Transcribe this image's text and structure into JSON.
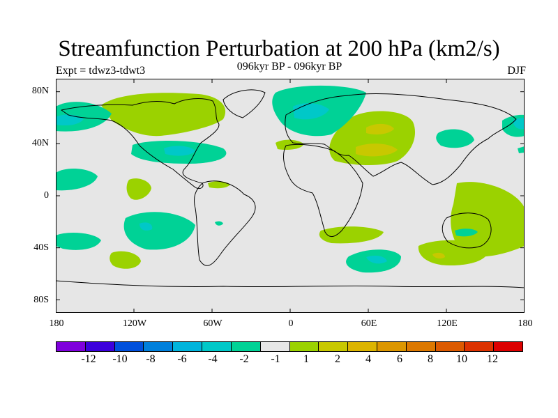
{
  "title": "Streamfunction Perturbation at 200 hPa (km2/s)",
  "subtitle": "096kyr BP - 096kyr BP",
  "left_label": "Expt = tdwz3-tdwt3",
  "right_label": "DJF",
  "map": {
    "projection": "cylindrical-equidistant",
    "background_color": "#e6e6e6",
    "coastline_color": "#000000",
    "lat_ticks": [
      "80N",
      "40N",
      "0",
      "40S",
      "80S"
    ],
    "lat_values": [
      80,
      40,
      0,
      -40,
      -80
    ],
    "lon_ticks": [
      "180",
      "120W",
      "60W",
      "0",
      "60E",
      "120E",
      "180"
    ],
    "lon_values": [
      -180,
      -120,
      -60,
      0,
      60,
      120,
      180
    ]
  },
  "colorbar": {
    "colors": [
      "#7f00dc",
      "#3c00dc",
      "#0050dc",
      "#0080dc",
      "#00b4dc",
      "#00c8c8",
      "#00d296",
      "#e6e6e6",
      "#9bd200",
      "#c8c800",
      "#dcb400",
      "#dc9600",
      "#dc7800",
      "#dc5a00",
      "#dc3200",
      "#dc0000"
    ],
    "labels": [
      "-12",
      "-10",
      "-8",
      "-6",
      "-4",
      "-2",
      "-1",
      "1",
      "2",
      "4",
      "6",
      "8",
      "10",
      "12"
    ]
  }
}
